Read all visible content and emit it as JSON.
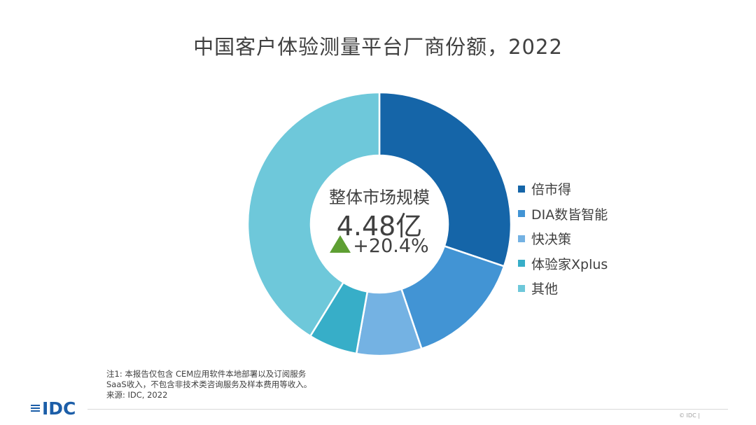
{
  "title": "中国客户体验测量平台厂商份额，2022",
  "center": {
    "label": "整体市场规模",
    "value": "4.48亿",
    "growth": "+20.4%",
    "growth_icon": "up-triangle-icon",
    "growth_color": "#5e9f33"
  },
  "chart_data": {
    "type": "pie",
    "variant": "donut",
    "title": "中国客户体验测量平台厂商份额，2022",
    "categories": [
      "倍市得",
      "DIA数皆智能",
      "快决策",
      "体验家Xplus",
      "其他"
    ],
    "values": [
      30.2,
      14.6,
      8.0,
      6.0,
      41.2
    ],
    "colors": [
      "#1565a8",
      "#4294d4",
      "#74b2e3",
      "#37aec8",
      "#6ec8da"
    ],
    "legend_position": "right"
  },
  "notes": [
    "注1: 本报告仅包含 CEM应用软件本地部署以及订阅服务",
    "SaaS收入，不包含非技术类咨询服务及样本费用等收入。",
    "来源: IDC, 2022"
  ],
  "logo": {
    "text": "IDC",
    "color": "#1c5ea8"
  },
  "copyright": "© IDC |"
}
